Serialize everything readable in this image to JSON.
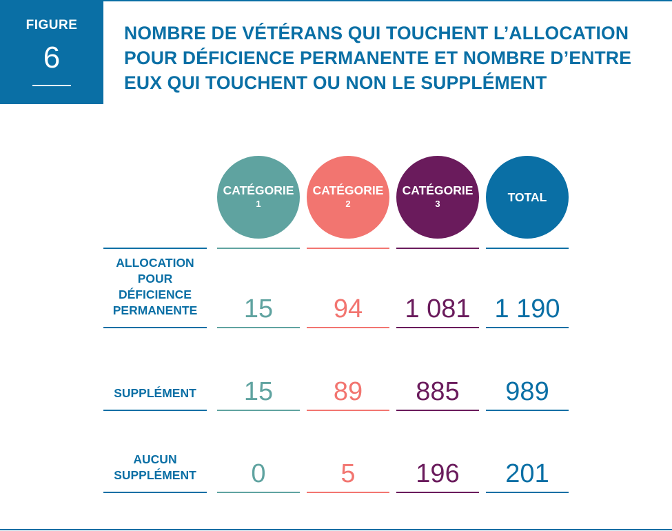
{
  "figure": {
    "label": "FIGURE",
    "number": "6"
  },
  "title": "NOMBRE DE VÉTÉRANS QUI TOUCHENT L’ALLOCATION POUR DÉFICIENCE PERMANENTE ET NOMBRE D’ENTRE EUX QUI TOUCHENT OU NON LE SUPPLÉMENT",
  "colors": {
    "brand_blue": "#0a6fa5",
    "categorie_1": "#5fa3a0",
    "categorie_2": "#f27570",
    "categorie_3": "#6a1b5c",
    "total": "#0a6fa5"
  },
  "chart_data": {
    "type": "table",
    "title": "NOMBRE DE VÉTÉRANS QUI TOUCHENT L’ALLOCATION POUR DÉFICIENCE PERMANENTE ET NOMBRE D’ENTRE EUX QUI TOUCHENT OU NON LE SUPPLÉMENT",
    "columns": [
      {
        "line1": "CATÉGORIE",
        "line2": "1",
        "color": "#5fa3a0"
      },
      {
        "line1": "CATÉGORIE",
        "line2": "2",
        "color": "#f27570"
      },
      {
        "line1": "CATÉGORIE",
        "line2": "3",
        "color": "#6a1b5c"
      },
      {
        "line1": "TOTAL",
        "line2": "",
        "color": "#0a6fa5"
      }
    ],
    "rows": [
      {
        "label_lines": [
          "ALLOCATION",
          "POUR",
          "DÉFICIENCE",
          "PERMANENTE"
        ],
        "display": [
          "15",
          "94",
          "1 081",
          "1 190"
        ],
        "values": [
          15,
          94,
          1081,
          1190
        ]
      },
      {
        "label_lines": [
          "SUPPLÉMENT"
        ],
        "display": [
          "15",
          "89",
          "885",
          "989"
        ],
        "values": [
          15,
          89,
          885,
          989
        ]
      },
      {
        "label_lines": [
          "AUCUN",
          "SUPPLÉMENT"
        ],
        "display": [
          "0",
          "5",
          "196",
          "201"
        ],
        "values": [
          0,
          5,
          196,
          201
        ]
      }
    ]
  }
}
